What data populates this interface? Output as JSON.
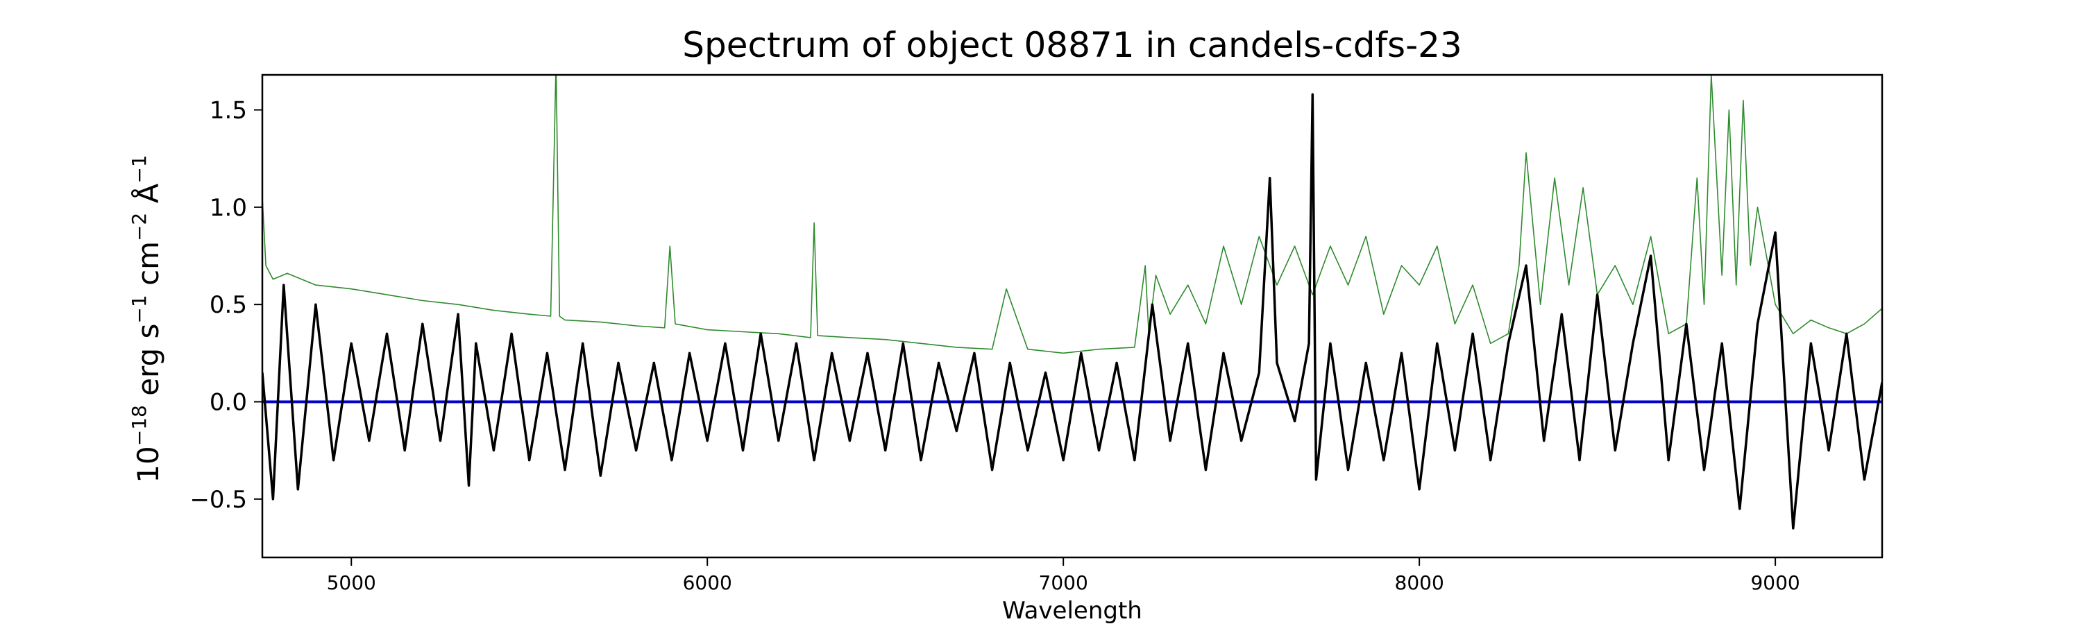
{
  "chart_data": {
    "type": "line",
    "title": "Spectrum of object 08871 in candels-cdfs-23",
    "xlabel": "Wavelength",
    "ylabel_base": "10",
    "ylabel_exp": "−18",
    "ylabel_unit1": " erg s",
    "ylabel_exp1": "−1",
    "ylabel_unit2": " cm",
    "ylabel_exp2": "−2",
    "ylabel_unit3": " Å",
    "ylabel_exp3": "−1",
    "xlim": [
      4750,
      9300
    ],
    "ylim": [
      -0.8,
      1.68
    ],
    "xticks": [
      5000,
      6000,
      7000,
      8000,
      9000
    ],
    "xtick_labels": [
      "5000",
      "6000",
      "7000",
      "8000",
      "9000"
    ],
    "yticks": [
      -0.5,
      0.0,
      0.5,
      1.0,
      1.5
    ],
    "ytick_labels": [
      "−0.5",
      "0.0",
      "0.5",
      "1.0",
      "1.5"
    ],
    "grid": false,
    "legend": "none",
    "colors": {
      "flux": "#000000",
      "noise": "#2e8b2e",
      "zero": "#0000cc"
    },
    "series": [
      {
        "role": "flux",
        "x": [
          4750,
          4780,
          4810,
          4850,
          4900,
          4950,
          5000,
          5050,
          5100,
          5150,
          5200,
          5250,
          5300,
          5330,
          5350,
          5400,
          5450,
          5500,
          5550,
          5600,
          5650,
          5700,
          5750,
          5800,
          5850,
          5900,
          5950,
          6000,
          6050,
          6100,
          6150,
          6200,
          6250,
          6300,
          6350,
          6400,
          6450,
          6500,
          6550,
          6600,
          6650,
          6700,
          6750,
          6800,
          6850,
          6900,
          6950,
          7000,
          7050,
          7100,
          7150,
          7200,
          7250,
          7300,
          7350,
          7400,
          7450,
          7500,
          7550,
          7580,
          7600,
          7650,
          7690,
          7700,
          7710,
          7750,
          7800,
          7850,
          7900,
          7950,
          8000,
          8050,
          8100,
          8150,
          8200,
          8250,
          8300,
          8350,
          8400,
          8450,
          8500,
          8550,
          8600,
          8650,
          8700,
          8750,
          8800,
          8850,
          8900,
          8950,
          9000,
          9050,
          9100,
          9150,
          9200,
          9250,
          9300
        ],
        "y": [
          0.15,
          -0.5,
          0.6,
          -0.45,
          0.5,
          -0.3,
          0.3,
          -0.2,
          0.35,
          -0.25,
          0.4,
          -0.2,
          0.45,
          -0.43,
          0.3,
          -0.25,
          0.35,
          -0.3,
          0.25,
          -0.35,
          0.3,
          -0.38,
          0.2,
          -0.25,
          0.2,
          -0.3,
          0.25,
          -0.2,
          0.3,
          -0.25,
          0.35,
          -0.2,
          0.3,
          -0.3,
          0.25,
          -0.2,
          0.25,
          -0.25,
          0.3,
          -0.3,
          0.2,
          -0.15,
          0.25,
          -0.35,
          0.2,
          -0.25,
          0.15,
          -0.3,
          0.25,
          -0.25,
          0.2,
          -0.3,
          0.5,
          -0.2,
          0.3,
          -0.35,
          0.25,
          -0.2,
          0.15,
          1.15,
          0.2,
          -0.1,
          0.3,
          1.58,
          -0.4,
          0.3,
          -0.35,
          0.2,
          -0.3,
          0.25,
          -0.45,
          0.3,
          -0.25,
          0.35,
          -0.3,
          0.3,
          0.7,
          -0.2,
          0.45,
          -0.3,
          0.55,
          -0.25,
          0.3,
          0.75,
          -0.3,
          0.4,
          -0.35,
          0.3,
          -0.55,
          0.4,
          0.87,
          -0.65,
          0.3,
          -0.25,
          0.35,
          -0.4,
          0.1
        ]
      },
      {
        "role": "noise",
        "x": [
          4750,
          4760,
          4780,
          4820,
          4900,
          5000,
          5100,
          5200,
          5300,
          5400,
          5500,
          5560,
          5575,
          5585,
          5600,
          5700,
          5800,
          5880,
          5895,
          5910,
          6000,
          6100,
          6200,
          6290,
          6300,
          6310,
          6400,
          6500,
          6600,
          6700,
          6800,
          6840,
          6900,
          7000,
          7100,
          7200,
          7230,
          7240,
          7260,
          7300,
          7350,
          7400,
          7450,
          7500,
          7550,
          7600,
          7650,
          7700,
          7750,
          7800,
          7850,
          7900,
          7950,
          8000,
          8050,
          8100,
          8150,
          8200,
          8250,
          8280,
          8300,
          8340,
          8380,
          8420,
          8460,
          8500,
          8550,
          8600,
          8650,
          8700,
          8750,
          8780,
          8800,
          8820,
          8850,
          8870,
          8890,
          8910,
          8930,
          8950,
          9000,
          9050,
          9100,
          9150,
          9200,
          9250,
          9300
        ],
        "y": [
          1.05,
          0.7,
          0.63,
          0.66,
          0.6,
          0.58,
          0.55,
          0.52,
          0.5,
          0.47,
          0.45,
          0.44,
          1.75,
          0.44,
          0.42,
          0.41,
          0.39,
          0.38,
          0.8,
          0.4,
          0.37,
          0.36,
          0.35,
          0.33,
          0.92,
          0.34,
          0.33,
          0.32,
          0.3,
          0.28,
          0.27,
          0.58,
          0.27,
          0.25,
          0.27,
          0.28,
          0.7,
          0.35,
          0.65,
          0.45,
          0.6,
          0.4,
          0.8,
          0.5,
          0.85,
          0.6,
          0.8,
          0.55,
          0.8,
          0.6,
          0.85,
          0.45,
          0.7,
          0.6,
          0.8,
          0.4,
          0.6,
          0.3,
          0.35,
          0.7,
          1.28,
          0.5,
          1.15,
          0.6,
          1.1,
          0.55,
          0.7,
          0.5,
          0.85,
          0.35,
          0.4,
          1.15,
          0.5,
          1.68,
          0.65,
          1.5,
          0.6,
          1.55,
          0.7,
          1.0,
          0.5,
          0.35,
          0.42,
          0.38,
          0.35,
          0.4,
          0.48
        ]
      },
      {
        "role": "zero",
        "x": [
          4750,
          9300
        ],
        "y": [
          0,
          0
        ]
      }
    ]
  }
}
